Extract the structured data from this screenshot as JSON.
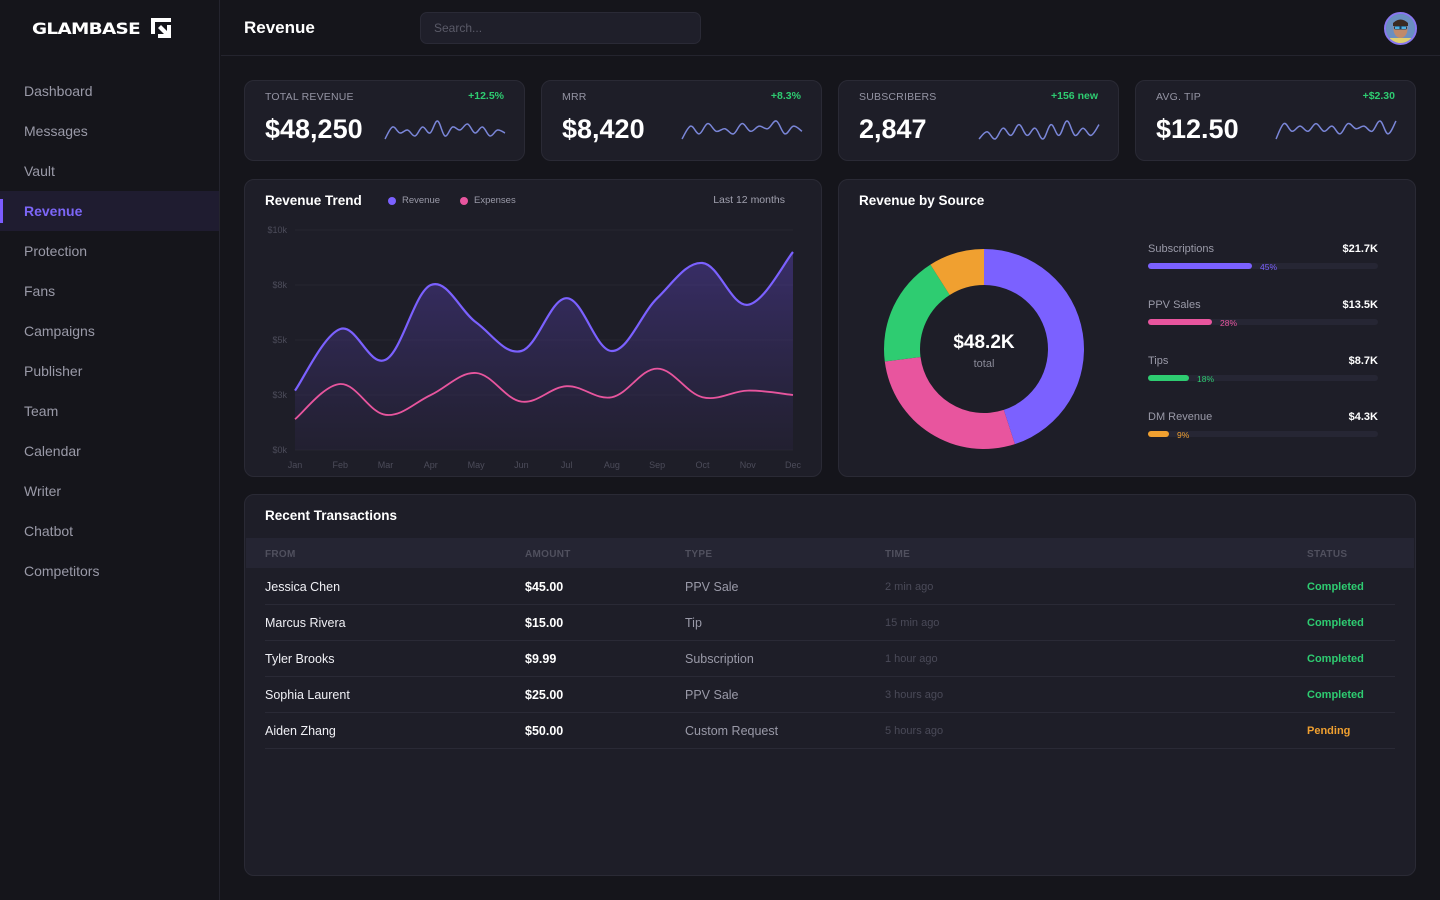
{
  "app": {
    "brand": "GLAMBASE",
    "logo_icon": "glambase-arrow-logo"
  },
  "sidebar": {
    "active_index": 3,
    "items": [
      {
        "label": "Dashboard"
      },
      {
        "label": "Messages"
      },
      {
        "label": "Vault"
      },
      {
        "label": "Revenue"
      },
      {
        "label": "Protection"
      },
      {
        "label": "Fans"
      },
      {
        "label": "Campaigns"
      },
      {
        "label": "Publisher"
      },
      {
        "label": "Team"
      },
      {
        "label": "Calendar"
      },
      {
        "label": "Writer"
      },
      {
        "label": "Chatbot"
      },
      {
        "label": "Competitors"
      }
    ]
  },
  "header": {
    "title": "Revenue",
    "search_placeholder": "Search...",
    "search_value": "",
    "avatar_icon": "user-avatar"
  },
  "colors": {
    "accent": "#7c5cff",
    "revenue": "#7b61ff",
    "expenses": "#e8559e",
    "positive": "#2ecc71",
    "pending": "#f0a030",
    "subscriptions": "#7b61ff",
    "ppv": "#e8559e",
    "tips": "#2ecc71",
    "dm": "#f0a030"
  },
  "stats": [
    {
      "label": "TOTAL REVENUE",
      "value": "$48,250",
      "delta": "+12.5%",
      "spark": [
        2,
        6,
        4,
        5,
        3,
        6,
        4,
        8,
        3,
        6,
        5,
        7,
        4,
        6,
        3,
        5,
        4
      ]
    },
    {
      "label": "MRR",
      "value": "$8,420",
      "delta": "+8.3%",
      "spark": [
        1,
        6,
        3,
        7,
        4,
        5,
        3,
        7,
        4,
        6,
        5,
        8,
        3,
        6,
        4
      ]
    },
    {
      "label": "SUBSCRIBERS",
      "value": "2,847",
      "delta": "+156 new",
      "spark": [
        3,
        5,
        3,
        6,
        4,
        7,
        4,
        6,
        3,
        7,
        4,
        8,
        4,
        6,
        4,
        7
      ]
    },
    {
      "label": "AVG. TIP",
      "value": "$12.50",
      "delta": "+$2.30",
      "spark": [
        1,
        7,
        4,
        6,
        4,
        7,
        4,
        6,
        3,
        7,
        5,
        6,
        4,
        8,
        3,
        8
      ]
    }
  ],
  "revenue_trend": {
    "title": "Revenue Trend",
    "range_label": "Last 12 months"
  },
  "revenue_by_source": {
    "title": "Revenue by Source",
    "total": "$48.2K",
    "total_label": "total",
    "sources": [
      {
        "name": "Subscriptions",
        "amount": "$21.7K",
        "pct": 45,
        "pct_label": "45%",
        "color": "#7b61ff"
      },
      {
        "name": "PPV Sales",
        "amount": "$13.5K",
        "pct": 28,
        "pct_label": "28%",
        "color": "#e8559e"
      },
      {
        "name": "Tips",
        "amount": "$8.7K",
        "pct": 18,
        "pct_label": "18%",
        "color": "#2ecc71"
      },
      {
        "name": "DM Revenue",
        "amount": "$4.3K",
        "pct": 9,
        "pct_label": "9%",
        "color": "#f0a030"
      }
    ]
  },
  "transactions": {
    "title": "Recent Transactions",
    "columns": [
      "FROM",
      "AMOUNT",
      "TYPE",
      "TIME",
      "STATUS"
    ],
    "rows": [
      {
        "from": "Jessica Chen",
        "amount": "$45.00",
        "type": "PPV Sale",
        "time": "2 min ago",
        "status": "Completed"
      },
      {
        "from": "Marcus Rivera",
        "amount": "$15.00",
        "type": "Tip",
        "time": "15 min ago",
        "status": "Completed"
      },
      {
        "from": "Tyler Brooks",
        "amount": "$9.99",
        "type": "Subscription",
        "time": "1 hour ago",
        "status": "Completed"
      },
      {
        "from": "Sophia Laurent",
        "amount": "$25.00",
        "type": "PPV Sale",
        "time": "3 hours ago",
        "status": "Completed"
      },
      {
        "from": "Aiden Zhang",
        "amount": "$50.00",
        "type": "Custom Request",
        "time": "5 hours ago",
        "status": "Pending"
      }
    ]
  },
  "chart_data": [
    {
      "type": "line",
      "title": "Revenue Trend",
      "subtitle": "Last 12 months",
      "categories": [
        "Jan",
        "Feb",
        "Mar",
        "Apr",
        "May",
        "Jun",
        "Jul",
        "Aug",
        "Sep",
        "Oct",
        "Nov",
        "Dec"
      ],
      "series": [
        {
          "name": "Revenue",
          "values": [
            2.7,
            5.5,
            4.1,
            7.5,
            5.8,
            4.5,
            6.9,
            4.5,
            6.9,
            8.5,
            6.6,
            9.0
          ],
          "area_fill": true
        },
        {
          "name": "Expenses",
          "values": [
            1.4,
            3.0,
            1.6,
            2.5,
            3.5,
            2.2,
            2.9,
            2.4,
            3.7,
            2.4,
            2.7,
            2.5
          ]
        }
      ],
      "units": "thousands USD",
      "ylim": [
        0,
        10
      ],
      "yticks": [
        0,
        2.5,
        5,
        7.5,
        10
      ],
      "ytick_labels": [
        "$0k",
        "$3k",
        "$5k",
        "$8k",
        "$10k"
      ],
      "xlabel": "",
      "ylabel": "",
      "grid": true,
      "legend": "top-left"
    },
    {
      "type": "pie",
      "title": "Revenue by Source",
      "donut": true,
      "center_text": "$48.2K",
      "center_subtext": "total",
      "labels": [
        "Subscriptions",
        "PPV Sales",
        "Tips",
        "DM Revenue"
      ],
      "values": [
        45,
        28,
        18,
        9
      ],
      "amounts": [
        "$21.7K",
        "$13.5K",
        "$8.7K",
        "$4.3K"
      ]
    }
  ]
}
